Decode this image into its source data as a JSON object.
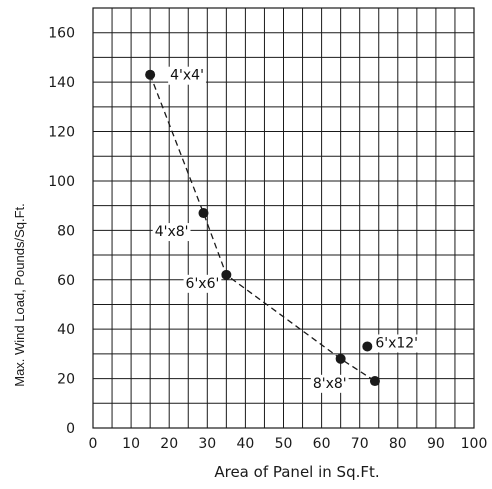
{
  "chart_data": {
    "type": "scatter",
    "xlabel": "Area of Panel in Sq.Ft.",
    "ylabel": "Max. Wind Load, Pounds/Sq.Ft.",
    "xlim": [
      0,
      100
    ],
    "ylim": [
      0,
      170
    ],
    "xticks": [
      0,
      10,
      20,
      30,
      40,
      50,
      60,
      70,
      80,
      90,
      100
    ],
    "yticks": [
      0,
      20,
      40,
      60,
      80,
      100,
      120,
      140,
      160
    ],
    "grid": true,
    "points": [
      {
        "label": "4'x4'",
        "x": 15,
        "y": 143
      },
      {
        "label": "4'x8'",
        "x": 29,
        "y": 87
      },
      {
        "label": "6'x6'",
        "x": 35,
        "y": 62
      },
      {
        "label": "8'x8'",
        "x": 65,
        "y": 28
      },
      {
        "label": "6'x12'",
        "x": 72,
        "y": 33
      },
      {
        "label": "",
        "x": 74,
        "y": 19
      }
    ],
    "trend": [
      {
        "x": 15,
        "y": 143
      },
      {
        "x": 29,
        "y": 87
      },
      {
        "x": 35,
        "y": 62
      },
      {
        "x": 65,
        "y": 28
      },
      {
        "x": 74,
        "y": 19
      }
    ],
    "colors": {
      "grid": "#1a1a1a",
      "points": "#1a1a1a",
      "trend": "#1a1a1a",
      "text": "#1a1a1a"
    }
  }
}
